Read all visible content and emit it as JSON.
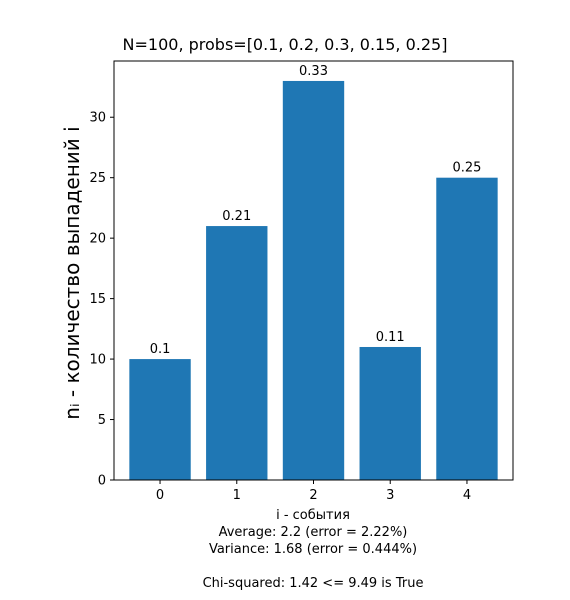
{
  "chart_data": {
    "type": "bar",
    "title": "N=100, probs=[0.1, 0.2, 0.3, 0.15, 0.25]",
    "categories": [
      "0",
      "1",
      "2",
      "3",
      "4"
    ],
    "values": [
      10,
      21,
      33,
      11,
      25
    ],
    "bar_labels": [
      "0.1",
      "0.21",
      "0.33",
      "0.11",
      "0.25"
    ],
    "xlabel": "i - события",
    "ylabel": "nᵢ - количество выпадений i",
    "ylim": [
      0,
      34.65
    ],
    "yticks": [
      0,
      5,
      10,
      15,
      20,
      25,
      30
    ],
    "grid": false,
    "bar_color": "#1f77b4"
  },
  "stats": {
    "average": "Average: 2.2 (error = 2.22%)",
    "variance": "Variance: 1.68 (error = 0.444%)",
    "chi_squared": "Chi-squared: 1.42 <= 9.49 is True"
  }
}
